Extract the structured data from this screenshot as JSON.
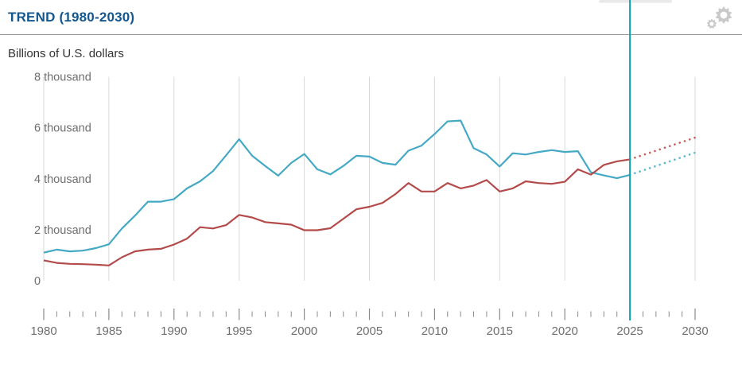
{
  "header": {
    "title": "TREND (1980-2030)",
    "settings_icon": "gear-icon"
  },
  "colors": {
    "title": "#14578f",
    "subtitle": "#333333",
    "divider": "#999999",
    "gear": "#c9c9c9",
    "axis_text": "#6e6e6e",
    "grid": "#d9d9d9",
    "tick": "#8a8a8a",
    "marker_line": "#109fb0",
    "handle": "#e9e9e9",
    "series_blue": "#45a9c5",
    "series_red": "#b34b4b",
    "series_blue_projection": "#62b7cd",
    "series_red_projection": "#c4615f"
  },
  "chart_data": {
    "type": "line",
    "title": "TREND (1980-2030)",
    "unit_caption": "Billions of U.S. dollars",
    "xlabel": "",
    "ylabel": "Billions of U.S. dollars",
    "xlim": [
      1980,
      2030
    ],
    "ylim": [
      0,
      8000
    ],
    "grid": "vertical-only",
    "legend_position": "none",
    "marker_line_year": 2025,
    "y_ticks": [
      {
        "value": 0,
        "label": "0"
      },
      {
        "value": 2000,
        "label": "2 thousand"
      },
      {
        "value": 4000,
        "label": "4 thousand"
      },
      {
        "value": 6000,
        "label": "6 thousand"
      },
      {
        "value": 8000,
        "label": "8 thousand"
      }
    ],
    "x_major_ticks": [
      {
        "year": 1980,
        "label": "1980"
      },
      {
        "year": 1985,
        "label": "1985"
      },
      {
        "year": 1990,
        "label": "1990"
      },
      {
        "year": 1995,
        "label": "1995"
      },
      {
        "year": 2000,
        "label": "2000"
      },
      {
        "year": 2005,
        "label": "2005"
      },
      {
        "year": 2010,
        "label": "2010"
      },
      {
        "year": 2015,
        "label": "2015"
      },
      {
        "year": 2020,
        "label": "2020"
      },
      {
        "year": 2025,
        "label": "2025"
      },
      {
        "year": 2030,
        "label": "2030"
      }
    ],
    "x_minor_tick_step_years": 1,
    "series": [
      {
        "name": "blue-series",
        "style": "solid",
        "color_key": "series_blue",
        "x_start": 1980,
        "x_step": 1,
        "values": [
          1100,
          1220,
          1150,
          1180,
          1280,
          1430,
          2050,
          2550,
          3100,
          3100,
          3200,
          3620,
          3900,
          4300,
          4920,
          5550,
          4900,
          4500,
          4120,
          4620,
          4970,
          4370,
          4170,
          4500,
          4900,
          4870,
          4620,
          4550,
          5100,
          5300,
          5750,
          6250,
          6280,
          5200,
          4950,
          4480,
          5000,
          4950,
          5050,
          5120,
          5050,
          5080,
          4250,
          4130,
          4020,
          4150
        ]
      },
      {
        "name": "red-series",
        "style": "solid",
        "color_key": "series_red",
        "x_start": 1980,
        "x_step": 1,
        "values": [
          800,
          700,
          660,
          650,
          630,
          600,
          920,
          1150,
          1220,
          1250,
          1420,
          1650,
          2100,
          2050,
          2180,
          2580,
          2480,
          2300,
          2250,
          2200,
          1980,
          1980,
          2060,
          2430,
          2800,
          2900,
          3050,
          3400,
          3830,
          3500,
          3500,
          3830,
          3620,
          3730,
          3950,
          3500,
          3620,
          3900,
          3830,
          3800,
          3880,
          4370,
          4160,
          4540,
          4680,
          4760
        ]
      },
      {
        "name": "blue-series-projection",
        "style": "dotted",
        "color_key": "series_blue_projection",
        "x": [
          2025,
          2030
        ],
        "values": [
          4150,
          5020
        ]
      },
      {
        "name": "red-series-projection",
        "style": "dotted",
        "color_key": "series_red_projection",
        "x": [
          2025,
          2030
        ],
        "values": [
          4760,
          5610
        ]
      }
    ]
  }
}
